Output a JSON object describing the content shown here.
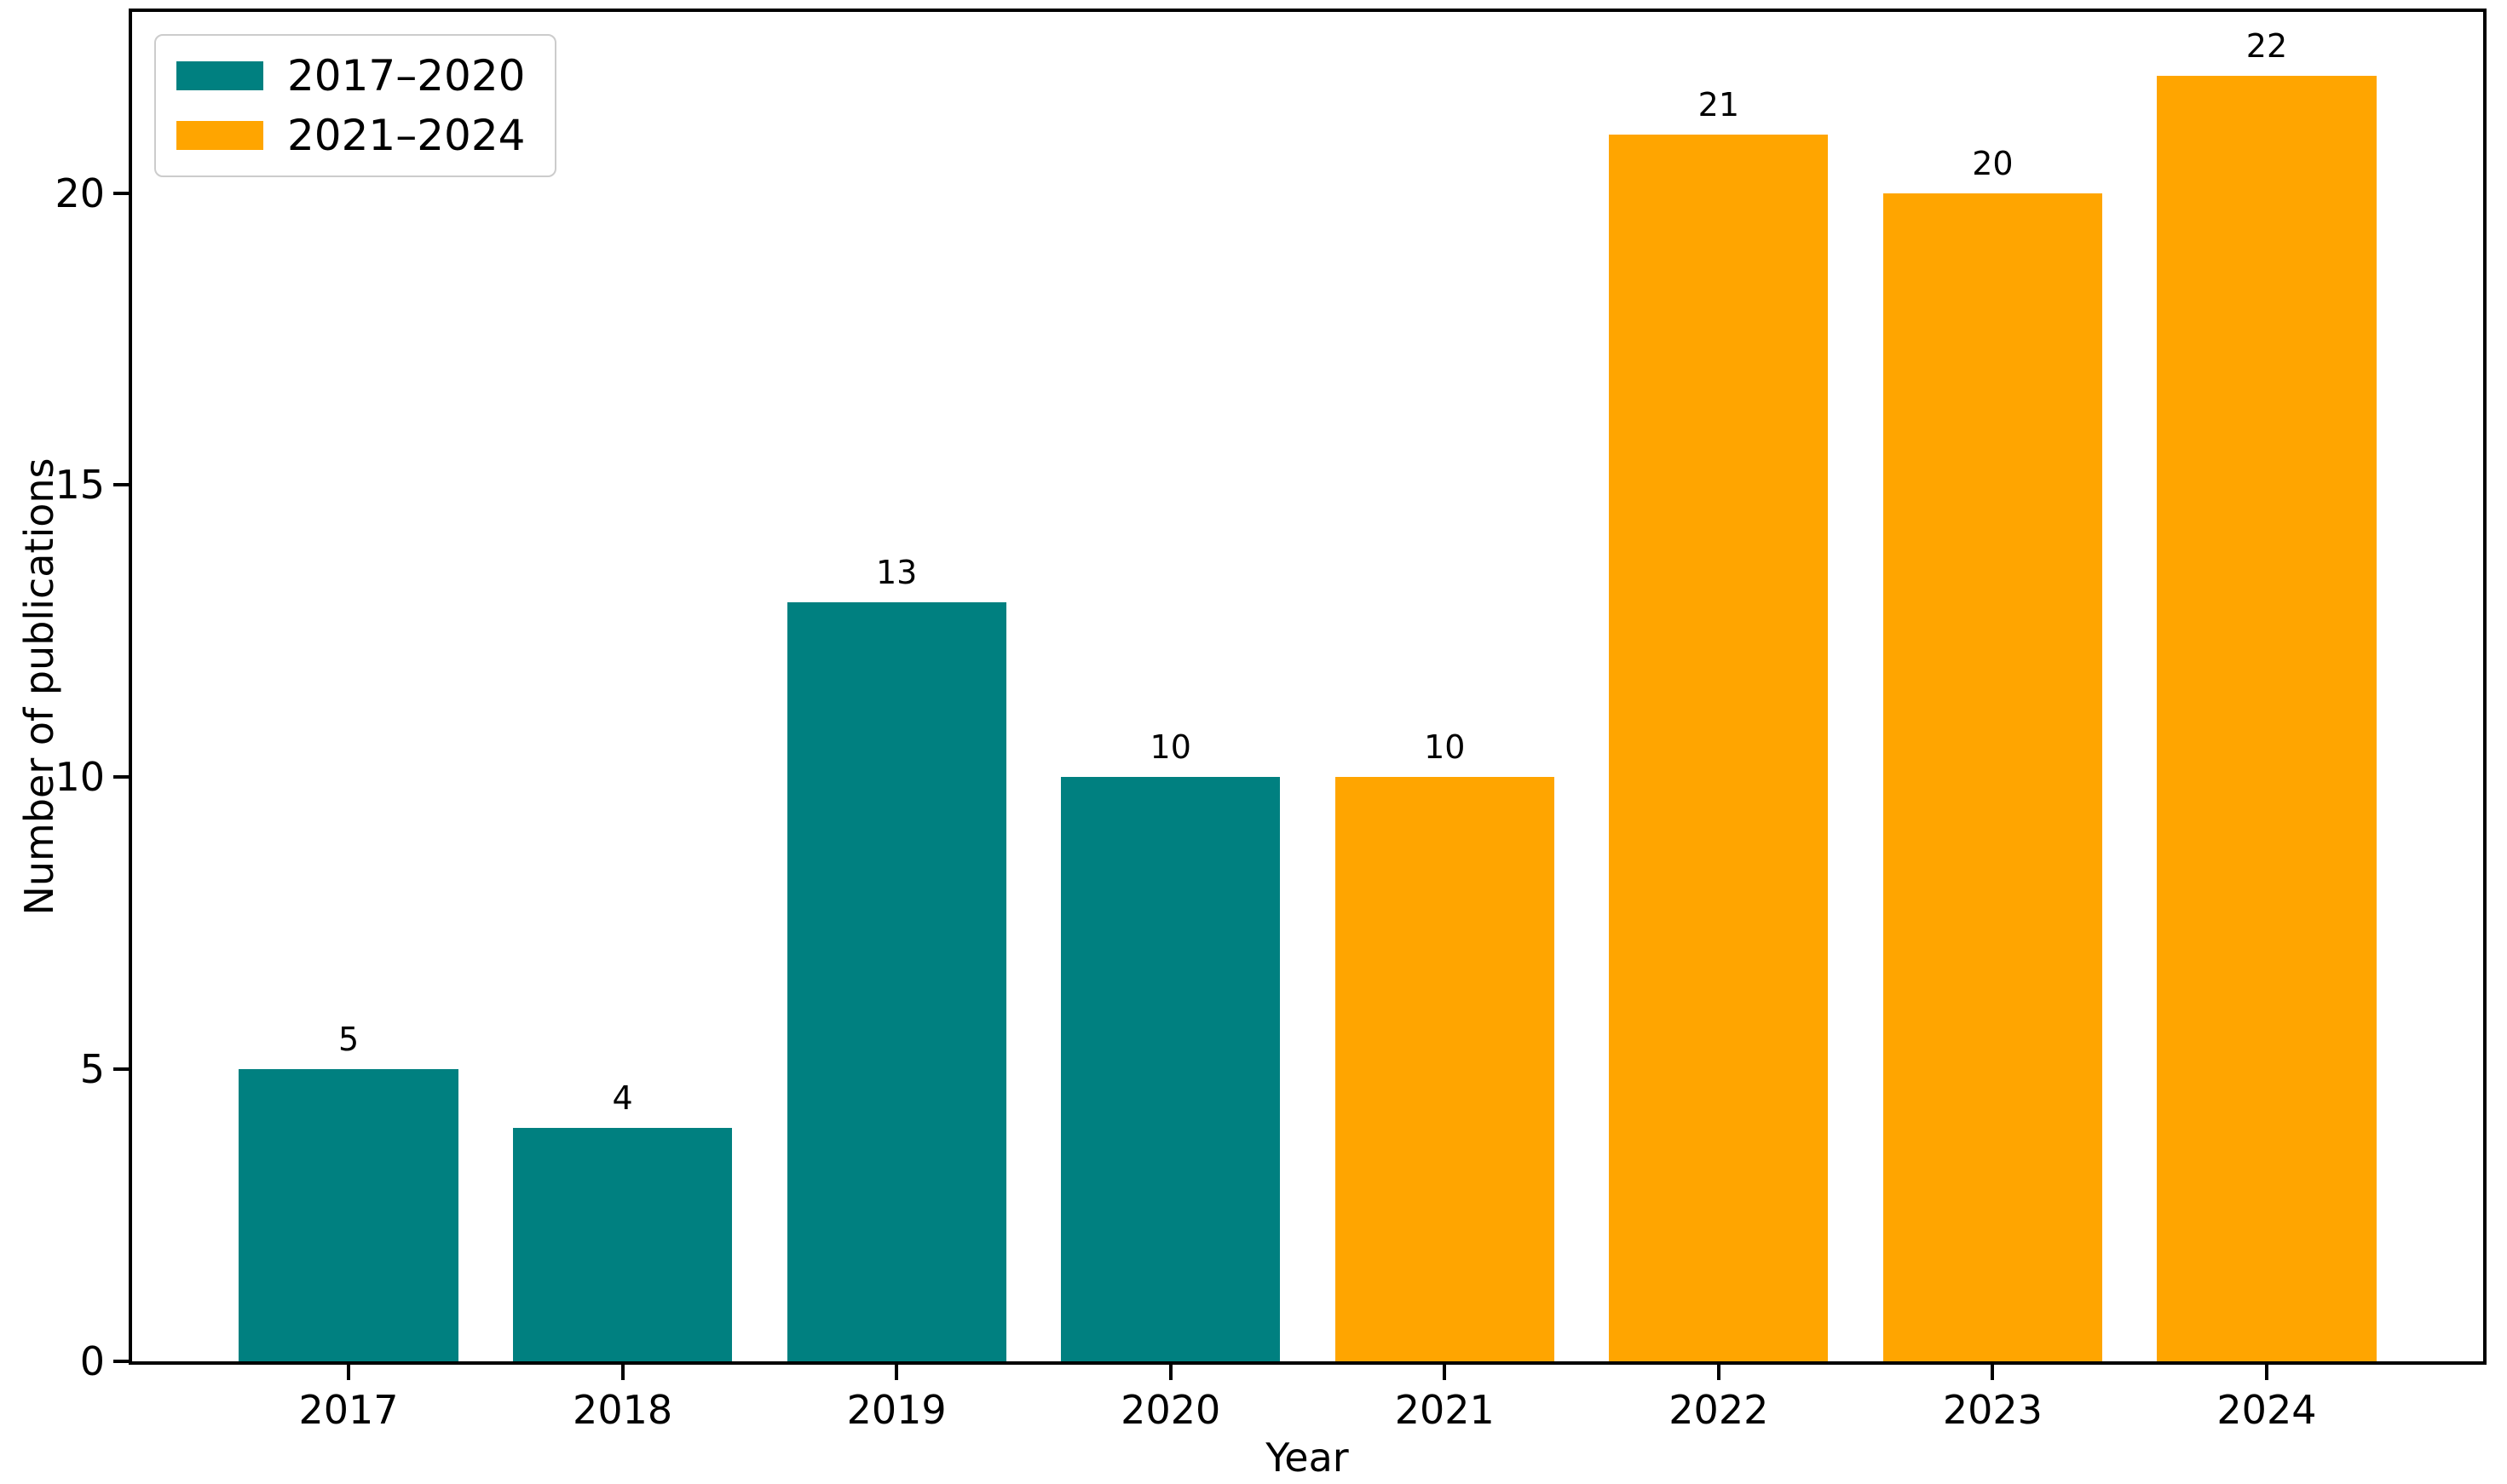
{
  "chart_data": {
    "type": "bar",
    "xlabel": "Year",
    "ylabel": "Number of publications",
    "categories": [
      "2017",
      "2018",
      "2019",
      "2020",
      "2021",
      "2022",
      "2023",
      "2024"
    ],
    "values": [
      5,
      4,
      13,
      10,
      10,
      21,
      20,
      22
    ],
    "bar_value_labels": [
      "5",
      "4",
      "13",
      "10",
      "10",
      "21",
      "20",
      "22"
    ],
    "bar_groups": [
      "teal",
      "teal",
      "teal",
      "teal",
      "orange",
      "orange",
      "orange",
      "orange"
    ],
    "group_colors": {
      "teal": "#008080",
      "orange": "#FFA500"
    },
    "legend": [
      {
        "label": "2017–2020",
        "color": "#008080",
        "icon": "teal-swatch-icon"
      },
      {
        "label": "2021–2024",
        "color": "#FFA500",
        "icon": "orange-swatch-icon"
      }
    ],
    "legend_position": "upper left",
    "y_ticks": [
      0,
      5,
      10,
      15,
      20
    ],
    "ylim": [
      0,
      23.1
    ],
    "xlim": [
      -0.79,
      7.79
    ],
    "bar_width": 0.8,
    "grid": false,
    "spine_color": "#000000",
    "background_color": "#ffffff"
  }
}
